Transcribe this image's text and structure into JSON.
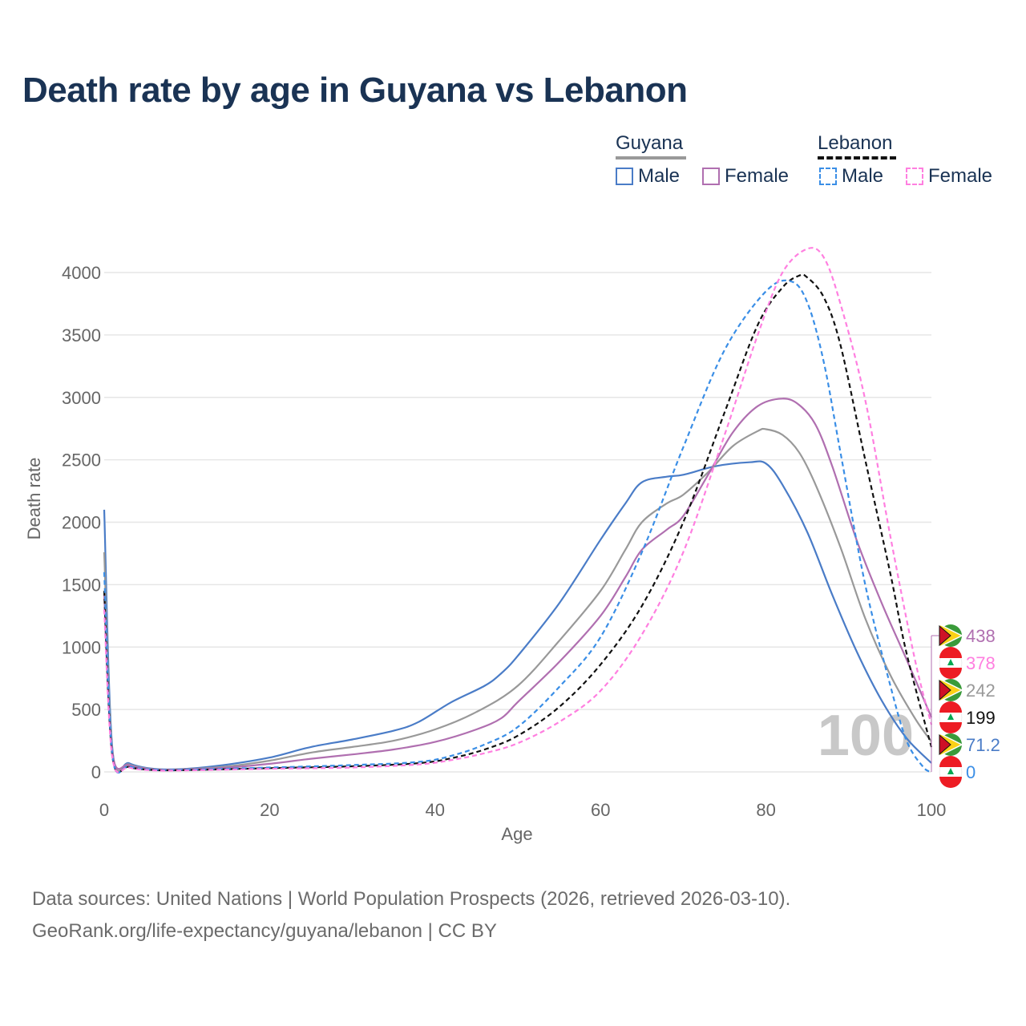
{
  "title": "Death rate by age in Guyana vs Lebanon",
  "legend": {
    "groups": [
      {
        "name": "Guyana",
        "style": "solid",
        "color": "#999999",
        "items": [
          {
            "label": "Male",
            "color": "#4a7cc7"
          },
          {
            "label": "Female",
            "color": "#b06fb0"
          }
        ]
      },
      {
        "name": "Lebanon",
        "style": "dashed",
        "color": "#111111",
        "items": [
          {
            "label": "Male",
            "color": "#3a8ee6"
          },
          {
            "label": "Female",
            "color": "#ff7fe0"
          }
        ]
      }
    ]
  },
  "chart_data": {
    "type": "line",
    "title": "Death rate by age in Guyana vs Lebanon",
    "xlabel": "Age",
    "ylabel": "Death rate",
    "xlim": [
      0,
      100
    ],
    "ylim": [
      0,
      4000
    ],
    "xticks": [
      0,
      20,
      40,
      60,
      80,
      100
    ],
    "yticks": [
      0,
      500,
      1000,
      1500,
      2000,
      2500,
      3000,
      3500,
      4000
    ],
    "grid": true,
    "hover_age": "100",
    "series": [
      {
        "name": "Guyana Male",
        "color": "#4a7cc7",
        "dash": false,
        "points": [
          [
            0,
            2100
          ],
          [
            1,
            180
          ],
          [
            3,
            70
          ],
          [
            6,
            25
          ],
          [
            10,
            25
          ],
          [
            15,
            60
          ],
          [
            20,
            115
          ],
          [
            25,
            200
          ],
          [
            30,
            260
          ],
          [
            35,
            330
          ],
          [
            38,
            400
          ],
          [
            42,
            560
          ],
          [
            46,
            690
          ],
          [
            48,
            790
          ],
          [
            50,
            930
          ],
          [
            55,
            1350
          ],
          [
            60,
            1860
          ],
          [
            63,
            2150
          ],
          [
            65,
            2320
          ],
          [
            68,
            2365
          ],
          [
            70,
            2380
          ],
          [
            74,
            2450
          ],
          [
            78,
            2480
          ],
          [
            80,
            2470
          ],
          [
            82,
            2300
          ],
          [
            85,
            1920
          ],
          [
            88,
            1420
          ],
          [
            91,
            960
          ],
          [
            94,
            570
          ],
          [
            97,
            270
          ],
          [
            100,
            71.2
          ]
        ]
      },
      {
        "name": "Guyana Both",
        "color": "#999999",
        "dash": false,
        "points": [
          [
            0,
            1760
          ],
          [
            1,
            160
          ],
          [
            3,
            60
          ],
          [
            6,
            22
          ],
          [
            10,
            22
          ],
          [
            15,
            45
          ],
          [
            20,
            90
          ],
          [
            25,
            155
          ],
          [
            30,
            200
          ],
          [
            35,
            250
          ],
          [
            40,
            340
          ],
          [
            45,
            480
          ],
          [
            50,
            690
          ],
          [
            55,
            1050
          ],
          [
            60,
            1450
          ],
          [
            63,
            1780
          ],
          [
            65,
            2000
          ],
          [
            68,
            2150
          ],
          [
            70,
            2220
          ],
          [
            73,
            2400
          ],
          [
            76,
            2610
          ],
          [
            79,
            2730
          ],
          [
            80,
            2745
          ],
          [
            82,
            2700
          ],
          [
            84,
            2560
          ],
          [
            86,
            2300
          ],
          [
            89,
            1800
          ],
          [
            92,
            1230
          ],
          [
            95,
            780
          ],
          [
            98,
            430
          ],
          [
            100,
            242
          ]
        ]
      },
      {
        "name": "Guyana Female",
        "color": "#b06fb0",
        "dash": false,
        "points": [
          [
            0,
            1420
          ],
          [
            1,
            150
          ],
          [
            3,
            55
          ],
          [
            6,
            20
          ],
          [
            10,
            20
          ],
          [
            15,
            35
          ],
          [
            20,
            65
          ],
          [
            25,
            105
          ],
          [
            30,
            140
          ],
          [
            35,
            180
          ],
          [
            40,
            240
          ],
          [
            45,
            340
          ],
          [
            48,
            430
          ],
          [
            50,
            560
          ],
          [
            55,
            880
          ],
          [
            60,
            1250
          ],
          [
            63,
            1560
          ],
          [
            65,
            1780
          ],
          [
            68,
            1940
          ],
          [
            70,
            2050
          ],
          [
            73,
            2380
          ],
          [
            76,
            2720
          ],
          [
            79,
            2930
          ],
          [
            82,
            2990
          ],
          [
            84,
            2940
          ],
          [
            86,
            2780
          ],
          [
            88,
            2450
          ],
          [
            91,
            1850
          ],
          [
            94,
            1350
          ],
          [
            97,
            900
          ],
          [
            100,
            438
          ]
        ]
      },
      {
        "name": "Lebanon Both",
        "color": "#111111",
        "dash": true,
        "points": [
          [
            0,
            1450
          ],
          [
            1,
            120
          ],
          [
            3,
            40
          ],
          [
            6,
            15
          ],
          [
            10,
            15
          ],
          [
            20,
            30
          ],
          [
            30,
            45
          ],
          [
            38,
            70
          ],
          [
            42,
            110
          ],
          [
            46,
            180
          ],
          [
            50,
            290
          ],
          [
            55,
            520
          ],
          [
            60,
            860
          ],
          [
            65,
            1330
          ],
          [
            70,
            2000
          ],
          [
            75,
            2880
          ],
          [
            79,
            3580
          ],
          [
            82,
            3880
          ],
          [
            84,
            3975
          ],
          [
            85,
            3960
          ],
          [
            87,
            3800
          ],
          [
            89,
            3420
          ],
          [
            92,
            2500
          ],
          [
            95,
            1600
          ],
          [
            97,
            950
          ],
          [
            100,
            199
          ]
        ]
      },
      {
        "name": "Lebanon Male",
        "color": "#3a8ee6",
        "dash": true,
        "points": [
          [
            0,
            1600
          ],
          [
            1,
            130
          ],
          [
            3,
            45
          ],
          [
            6,
            18
          ],
          [
            10,
            18
          ],
          [
            20,
            35
          ],
          [
            30,
            55
          ],
          [
            38,
            80
          ],
          [
            42,
            130
          ],
          [
            46,
            220
          ],
          [
            50,
            360
          ],
          [
            55,
            680
          ],
          [
            60,
            1080
          ],
          [
            65,
            1760
          ],
          [
            70,
            2600
          ],
          [
            75,
            3380
          ],
          [
            80,
            3850
          ],
          [
            83,
            3930
          ],
          [
            85,
            3760
          ],
          [
            87,
            3280
          ],
          [
            89,
            2560
          ],
          [
            92,
            1500
          ],
          [
            95,
            700
          ],
          [
            97,
            250
          ],
          [
            99,
            40
          ],
          [
            100,
            0
          ]
        ]
      },
      {
        "name": "Lebanon Female",
        "color": "#ff7fe0",
        "dash": true,
        "points": [
          [
            0,
            1300
          ],
          [
            1,
            110
          ],
          [
            3,
            35
          ],
          [
            6,
            12
          ],
          [
            10,
            12
          ],
          [
            20,
            25
          ],
          [
            30,
            35
          ],
          [
            38,
            60
          ],
          [
            42,
            95
          ],
          [
            46,
            150
          ],
          [
            50,
            230
          ],
          [
            55,
            400
          ],
          [
            60,
            650
          ],
          [
            65,
            1100
          ],
          [
            70,
            1760
          ],
          [
            75,
            2700
          ],
          [
            79,
            3500
          ],
          [
            82,
            4000
          ],
          [
            85,
            4190
          ],
          [
            87,
            4120
          ],
          [
            89,
            3750
          ],
          [
            92,
            2980
          ],
          [
            95,
            1900
          ],
          [
            98,
            900
          ],
          [
            100,
            378
          ]
        ]
      }
    ],
    "end_labels": [
      {
        "value": "438",
        "color": "#b06fb0",
        "flag": "guyana"
      },
      {
        "value": "378",
        "color": "#ff7fe0",
        "flag": "lebanon"
      },
      {
        "value": "242",
        "color": "#999999",
        "flag": "guyana"
      },
      {
        "value": "199",
        "color": "#111111",
        "flag": "lebanon"
      },
      {
        "value": "71.2",
        "color": "#4a7cc7",
        "flag": "guyana"
      },
      {
        "value": "0",
        "color": "#3a8ee6",
        "flag": "lebanon"
      }
    ]
  },
  "footer": {
    "line1": "Data sources: United Nations | World Population Prospects (2026, retrieved 2026-03-10).",
    "line2": "GeoRank.org/life-expectancy/guyana/lebanon | CC BY"
  }
}
